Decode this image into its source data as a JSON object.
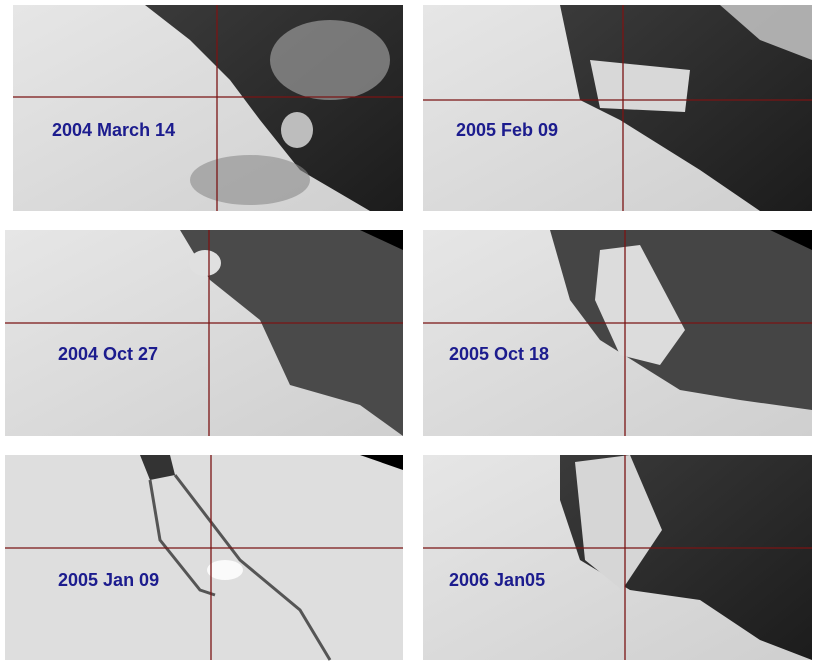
{
  "panels": [
    {
      "label": "2004 March 14"
    },
    {
      "label": "2005 Feb 09"
    },
    {
      "label": "2004 Oct 27"
    },
    {
      "label": "2005 Oct 18"
    },
    {
      "label": "2005 Jan 09"
    },
    {
      "label": "2006 Jan05"
    }
  ]
}
